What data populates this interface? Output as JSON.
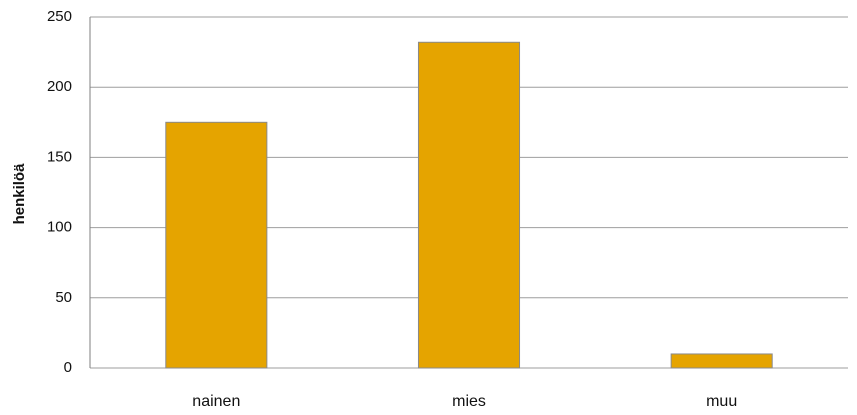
{
  "chart_data": {
    "type": "bar",
    "categories": [
      "nainen",
      "mies",
      "muu"
    ],
    "values": [
      175,
      232,
      10
    ],
    "title": "",
    "xlabel": "",
    "ylabel": "henkilöä",
    "ylim": [
      0,
      250
    ],
    "yticks": [
      0,
      50,
      100,
      150,
      200,
      250
    ],
    "grid": true,
    "legend": "none",
    "colors": {
      "bar": "#E5A400",
      "bar_stroke": "#8A8A8A",
      "grid": "#9E9E9E",
      "axis": "#7F7F7F"
    }
  }
}
